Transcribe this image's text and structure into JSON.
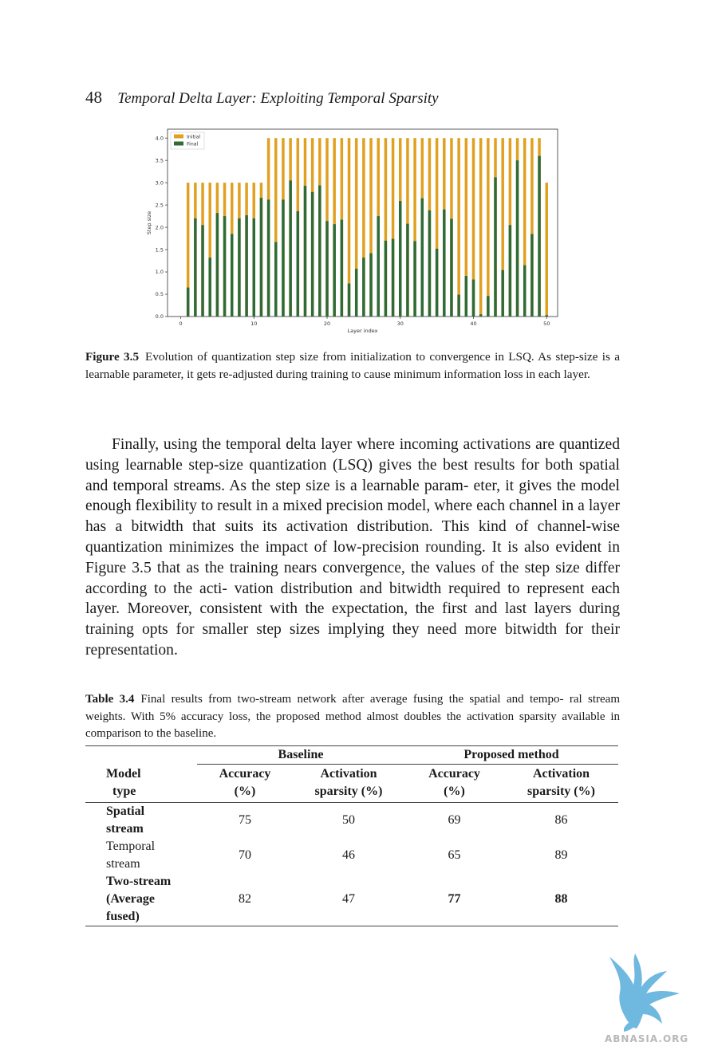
{
  "header": {
    "page_number": "48",
    "running_title": "Temporal Delta Layer: Exploiting Temporal Sparsity"
  },
  "figure": {
    "label": "Figure 3.5",
    "caption": "Evolution of quantization step size from initialization to convergence in LSQ. As step-size is a learnable parameter, it gets re-adjusted during training to cause minimum information loss in each layer."
  },
  "chart_data": {
    "type": "bar",
    "title": "",
    "xlabel": "Layer index",
    "ylabel": "Step size",
    "xlim": [
      -1.8,
      51.5
    ],
    "ylim": [
      0,
      4.2
    ],
    "xticks": [
      0,
      10,
      20,
      30,
      40,
      50
    ],
    "yticks": [
      0.0,
      0.5,
      1.0,
      1.5,
      2.0,
      2.5,
      3.0,
      3.5,
      4.0
    ],
    "legend_position": "top-left",
    "grid": false,
    "x": [
      1,
      2,
      3,
      4,
      5,
      6,
      7,
      8,
      9,
      10,
      11,
      12,
      13,
      14,
      15,
      16,
      17,
      18,
      19,
      20,
      21,
      22,
      23,
      24,
      25,
      26,
      27,
      28,
      29,
      30,
      31,
      32,
      33,
      34,
      35,
      36,
      37,
      38,
      39,
      40,
      41,
      42,
      43,
      44,
      45,
      46,
      47,
      48,
      49,
      50
    ],
    "series": [
      {
        "name": "Initial",
        "color": "#e0a020",
        "values": [
          3,
          3,
          3,
          3,
          3,
          3,
          3,
          3,
          3,
          3,
          3,
          4,
          4,
          4,
          4,
          4,
          4,
          4,
          4,
          4,
          4,
          4,
          4,
          4,
          4,
          4,
          4,
          4,
          4,
          4,
          4,
          4,
          4,
          4,
          4,
          4,
          4,
          4,
          4,
          4,
          4,
          4,
          4,
          4,
          4,
          4,
          4,
          4,
          4,
          3
        ]
      },
      {
        "name": "Final",
        "color": "#2f6b36",
        "values": [
          0.65,
          2.2,
          2.05,
          1.32,
          2.32,
          2.25,
          1.85,
          2.2,
          2.27,
          2.2,
          2.66,
          2.62,
          1.67,
          2.62,
          3.05,
          2.36,
          2.93,
          2.79,
          2.94,
          2.14,
          2.07,
          2.17,
          0.74,
          1.07,
          1.32,
          1.42,
          2.25,
          1.7,
          1.74,
          2.59,
          2.08,
          1.69,
          2.65,
          2.38,
          1.52,
          2.4,
          2.19,
          0.49,
          0.91,
          0.83,
          0.05,
          0.46,
          3.12,
          1.04,
          2.05,
          3.5,
          1.15,
          1.85,
          3.6,
          0.03
        ]
      }
    ]
  },
  "body_paragraph": "Finally, using the temporal delta layer where incoming activations are quantized using learnable step-size quantization (LSQ) gives the best results for both spatial and temporal streams. As the step size is a learnable param- eter, it gives the model enough flexibility to result in a mixed precision model, where each channel in a layer has a bitwidth that suits its activation distribution. This kind of channel-wise quantization minimizes the impact of low-precision rounding. It is also evident in Figure 3.5 that as the training nears convergence, the values of the step size differ according to the acti- vation distribution and bitwidth required to represent each layer. Moreover, consistent with the expectation, the first and last layers during training opts for smaller step sizes implying they need more bitwidth for their representation.",
  "table": {
    "label": "Table 3.4",
    "caption": "Final results from two-stream network after average fusing the spatial and tempo- ral stream weights. With 5% accuracy loss, the proposed method almost doubles the activation sparsity available in comparison to the baseline.",
    "group_baseline": "Baseline",
    "group_proposed": "Proposed method",
    "col_model_1": "Model",
    "col_model_2": "type",
    "col_acc_1": "Accuracy",
    "col_acc_2": "(%)",
    "col_sp_1": "Activation",
    "col_sp_2": "sparsity (%)",
    "rows": [
      {
        "name_1": "Spatial",
        "name_2": "stream",
        "b_acc": "75",
        "b_sp": "50",
        "p_acc": "69",
        "p_sp": "86"
      },
      {
        "name_1": "Temporal",
        "name_2": "stream",
        "b_acc": "70",
        "b_sp": "46",
        "p_acc": "65",
        "p_sp": "89"
      },
      {
        "name_1": "Two-stream",
        "name_2": "(Average",
        "name_3": "fused)",
        "b_acc": "82",
        "b_sp": "47",
        "p_acc": "77",
        "p_sp": "88"
      }
    ]
  },
  "watermark": {
    "text": "ABNASIA.ORG",
    "color": "#6fb8e0"
  }
}
